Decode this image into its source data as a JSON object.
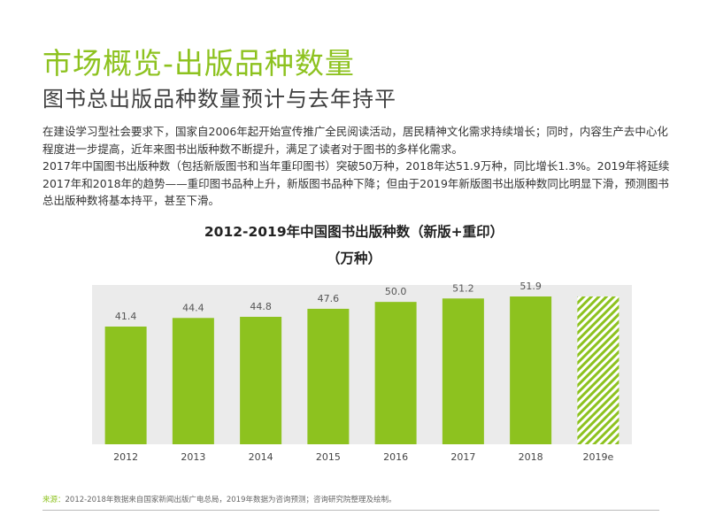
{
  "page": {
    "title": "市场概览-出版品种数量",
    "subtitle": "图书总出版品种数量预计与去年持平",
    "paragraph1": "在建设学习型社会要求下，国家自2006年起开始宣传推广全民阅读活动，居民精神文化需求持续增长；同时，内容生产去中心化程度进一步提高，近年来图书出版种数不断提升，满足了读者对于图书的多样化需求。",
    "paragraph2": "2017年中国图书出版种数（包括新版图书和当年重印图书）突破50万种，2018年达51.9万种，同比增长1.3%。2019年将延续2017年和2018年的趋势——重印图书品种上升，新版图书品种下降；但由于2019年新版图书出版种数同比明显下滑，预测图书总出版种数将基本持平，甚至下滑。",
    "source_label": "来源：",
    "source_text": "2012-2018年数据来自国家新闻出版广电总局，2019年数据为咨询预测；咨询研究院整理及绘制。"
  },
  "chart_data": {
    "type": "bar",
    "title": "2012-2019年中国图书出版种数（新版+重印）",
    "subtitle": "（万种）",
    "categories": [
      "2012",
      "2013",
      "2014",
      "2015",
      "2016",
      "2017",
      "2018",
      "2019e"
    ],
    "values": [
      41.4,
      44.4,
      44.8,
      47.6,
      50.0,
      51.2,
      51.9,
      null
    ],
    "value_labels": [
      "41.4",
      "44.4",
      "44.8",
      "47.6",
      "50.0",
      "51.2",
      "51.9",
      ""
    ],
    "projected_category": "2019e",
    "ylim": [
      0,
      60
    ],
    "grid": false,
    "colors": {
      "bar": "#8dc21f",
      "plot_bg": "#ebebeb",
      "projected_hatch": "#8dc21f"
    }
  }
}
